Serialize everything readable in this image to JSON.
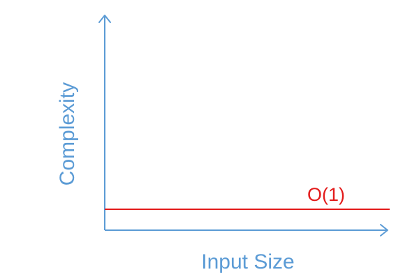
{
  "chart_data": {
    "type": "line",
    "title": "",
    "xlabel": "Input Size",
    "ylabel": "Complexity",
    "grid": false,
    "legend": "none",
    "x": [
      0,
      1
    ],
    "ylim": [
      0,
      1
    ],
    "series": [
      {
        "name": "O(1)",
        "values": [
          0.1,
          0.1
        ],
        "color": "#e31b1b"
      }
    ],
    "axis_color": "#5b9bd5"
  }
}
